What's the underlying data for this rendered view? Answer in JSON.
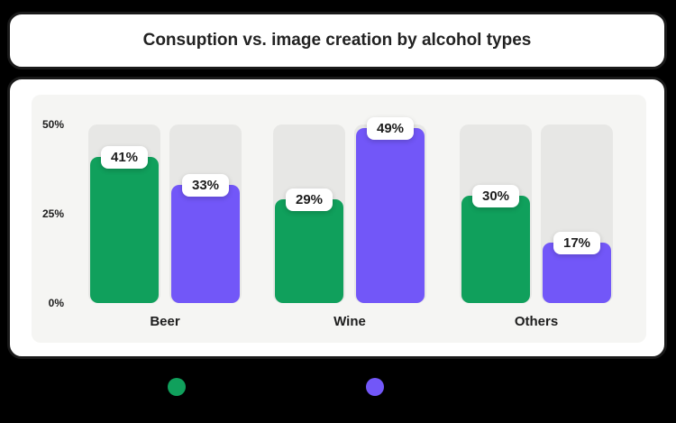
{
  "title_card": {
    "title": "Consuption vs. image creation by alcohol types"
  },
  "chart_data": {
    "type": "bar",
    "title": "Consuption vs. image creation by alcohol types",
    "categories": [
      "Beer",
      "Wine",
      "Others"
    ],
    "series": [
      {
        "name": "green-series",
        "color": "#10A05C",
        "values": [
          41,
          29,
          30
        ]
      },
      {
        "name": "purple-series",
        "color": "#7257F8",
        "values": [
          33,
          49,
          17
        ]
      }
    ],
    "value_suffix": "%",
    "y_ticks": [
      {
        "label": "50%",
        "value": 50
      },
      {
        "label": "25%",
        "value": 25
      },
      {
        "label": "0%",
        "value": 0
      }
    ],
    "ylim": [
      0,
      50
    ],
    "grid": false,
    "legend_position": "bottom"
  },
  "legend": {
    "dots": [
      {
        "name": "green-legend-dot",
        "color": "#10A05C"
      },
      {
        "name": "purple-legend-dot",
        "color": "#7257F8"
      }
    ]
  },
  "colors": {
    "page_background": "#000000",
    "card_background": "#FFFFFF",
    "card_border": "#1A1A1A",
    "panel_background": "#F5F5F3",
    "track": "#E7E7E5",
    "text": "#1D1D1D"
  }
}
